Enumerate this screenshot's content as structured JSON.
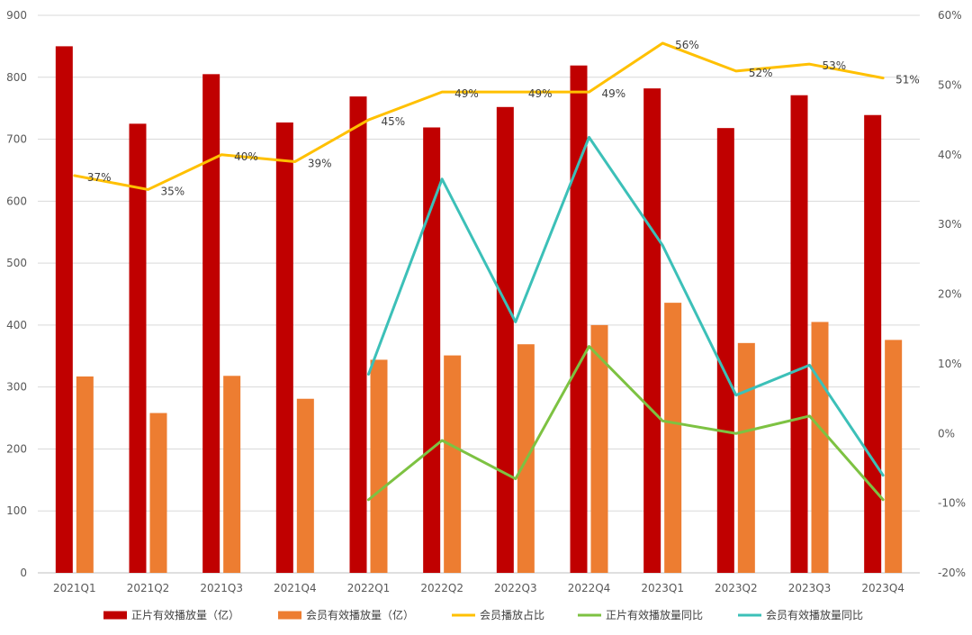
{
  "chart_data": {
    "type": "bar+line",
    "categories": [
      "2021Q1",
      "2021Q2",
      "2021Q3",
      "2021Q4",
      "2022Q1",
      "2022Q2",
      "2022Q3",
      "2022Q4",
      "2023Q1",
      "2023Q2",
      "2023Q3",
      "2023Q4"
    ],
    "left_axis": {
      "min": 0,
      "max": 900,
      "step": 100,
      "ticks": [
        "0",
        "100",
        "200",
        "300",
        "400",
        "500",
        "600",
        "700",
        "800",
        "900"
      ]
    },
    "right_axis": {
      "min": -20,
      "max": 60,
      "step": 10,
      "ticks": [
        "-20%",
        "-10%",
        "0%",
        "10%",
        "20%",
        "30%",
        "40%",
        "50%",
        "60%"
      ]
    },
    "series": [
      {
        "name": "正片有效播放量（亿）",
        "type": "bar",
        "axis": "left",
        "color": "#C00000",
        "values": [
          850,
          725,
          805,
          727,
          769,
          719,
          752,
          819,
          782,
          718,
          771,
          739
        ]
      },
      {
        "name": "会员有效播放量（亿）",
        "type": "bar",
        "axis": "left",
        "color": "#ED7D31",
        "values": [
          317,
          258,
          318,
          281,
          344,
          351,
          369,
          400,
          436,
          371,
          405,
          376
        ]
      },
      {
        "name": "会员播放占比",
        "type": "line",
        "axis": "right",
        "color": "#FFC000",
        "values": [
          37,
          35,
          40,
          39,
          45,
          49,
          49,
          49,
          56,
          52,
          53,
          51
        ],
        "labels": [
          "37%",
          "35%",
          "40%",
          "39%",
          "45%",
          "49%",
          "49%",
          "49%",
          "56%",
          "52%",
          "53%",
          "51%"
        ]
      },
      {
        "name": "正片有效播放量同比",
        "type": "line",
        "axis": "right",
        "color": "#7DC242",
        "values": [
          null,
          null,
          null,
          null,
          -9.5,
          -1,
          -6.5,
          12.5,
          1.8,
          0,
          2.5,
          -9.5
        ]
      },
      {
        "name": "会员有效播放量同比",
        "type": "line",
        "axis": "right",
        "color": "#3CC0B8",
        "values": [
          null,
          null,
          null,
          null,
          8.5,
          36.5,
          16,
          42.5,
          27,
          5.5,
          9.8,
          -6
        ]
      }
    ],
    "legend_position": "bottom",
    "grid": true
  }
}
